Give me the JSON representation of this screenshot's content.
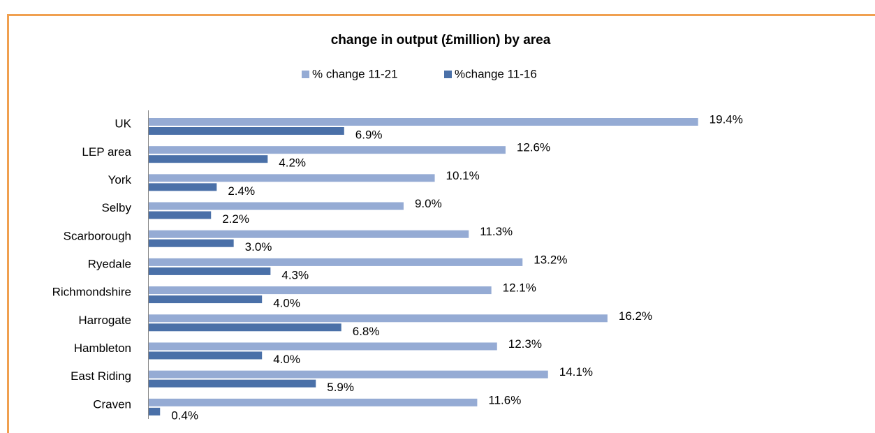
{
  "chart_data": {
    "type": "bar",
    "orientation": "horizontal",
    "title": "change in output (£million) by area",
    "categories": [
      "UK",
      "LEP area",
      "York",
      "Selby",
      "Scarborough",
      "Ryedale",
      "Richmondshire",
      "Harrogate",
      "Hambleton",
      "East Riding",
      "Craven"
    ],
    "series": [
      {
        "name": "% change 11-21",
        "color": "#95abd4",
        "values": [
          19.4,
          12.6,
          10.1,
          9.0,
          11.3,
          13.2,
          12.1,
          16.2,
          12.3,
          14.1,
          11.6
        ],
        "value_labels": [
          "19.4%",
          "12.6%",
          "10.1%",
          "9.0%",
          "11.3%",
          "13.2%",
          "12.1%",
          "16.2%",
          "12.3%",
          "14.1%",
          "11.6%"
        ]
      },
      {
        "name": "%change 11-16",
        "color": "#4a70a8",
        "values": [
          6.9,
          4.2,
          2.4,
          2.2,
          3.0,
          4.3,
          4.0,
          6.8,
          4.0,
          5.9,
          0.4
        ],
        "value_labels": [
          "6.9%",
          "4.2%",
          "2.4%",
          "2.2%",
          "3.0%",
          "4.3%",
          "4.0%",
          "6.8%",
          "4.0%",
          "5.9%",
          "0.4%"
        ]
      }
    ],
    "xlim": [
      0,
      20
    ],
    "legend": "top"
  }
}
